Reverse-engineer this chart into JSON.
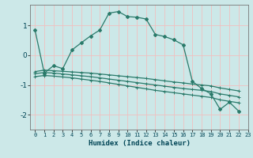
{
  "xlabel": "Humidex (Indice chaleur)",
  "bg_color": "#cce8e8",
  "grid_color": "#b0d8d8",
  "line_color": "#2a7a6a",
  "xlim": [
    -0.5,
    23
  ],
  "ylim": [
    -2.5,
    1.7
  ],
  "xticks": [
    0,
    1,
    2,
    3,
    4,
    5,
    6,
    7,
    8,
    9,
    10,
    11,
    12,
    13,
    14,
    15,
    16,
    17,
    18,
    19,
    20,
    21,
    22,
    23
  ],
  "yticks": [
    -2,
    -1,
    0,
    1
  ],
  "main_series": [
    0.85,
    -0.6,
    -0.35,
    -0.45,
    0.18,
    0.42,
    0.65,
    0.85,
    1.42,
    1.47,
    1.3,
    1.28,
    1.22,
    0.7,
    0.63,
    0.52,
    0.35,
    -0.88,
    -1.12,
    -1.3,
    -1.82,
    -1.58,
    -1.88
  ],
  "flat_lines": [
    [
      -0.55,
      -0.5,
      -0.52,
      -0.54,
      -0.56,
      -0.58,
      -0.6,
      -0.63,
      -0.66,
      -0.69,
      -0.72,
      -0.75,
      -0.78,
      -0.82,
      -0.86,
      -0.9,
      -0.93,
      -0.97,
      -1.0,
      -1.03,
      -1.1,
      -1.15,
      -1.2
    ],
    [
      -0.62,
      -0.58,
      -0.6,
      -0.63,
      -0.66,
      -0.69,
      -0.72,
      -0.76,
      -0.8,
      -0.84,
      -0.88,
      -0.92,
      -0.96,
      -1.0,
      -1.04,
      -1.08,
      -1.12,
      -1.15,
      -1.18,
      -1.22,
      -1.3,
      -1.35,
      -1.4
    ],
    [
      -0.72,
      -0.68,
      -0.7,
      -0.73,
      -0.76,
      -0.8,
      -0.84,
      -0.88,
      -0.93,
      -0.98,
      -1.03,
      -1.08,
      -1.13,
      -1.18,
      -1.22,
      -1.26,
      -1.3,
      -1.34,
      -1.38,
      -1.42,
      -1.5,
      -1.55,
      -1.6
    ]
  ],
  "linewidth": 0.9,
  "marker_size": 2.5
}
